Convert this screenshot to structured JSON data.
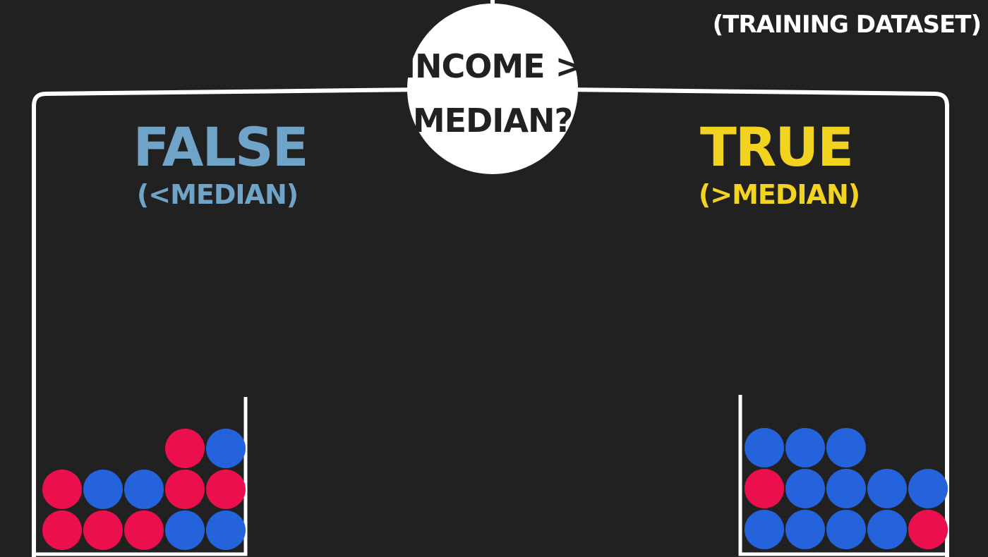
{
  "corner_label": "(TRAINING DATASET)",
  "question": {
    "line1": "INCOME >",
    "line2": "MEDIAN?"
  },
  "branches": {
    "left": {
      "title": "FALSE",
      "subtitle": "(<MEDIAN)",
      "color": "#6FA3C8",
      "rows": [
        [
          "red",
          "red",
          "red",
          "blue",
          "blue"
        ],
        [
          "red",
          "blue",
          "blue",
          "red",
          "red"
        ],
        [
          null,
          null,
          null,
          "red",
          "blue"
        ]
      ]
    },
    "right": {
      "title": "TRUE",
      "subtitle": "(>MEDIAN)",
      "color": "#F2D320",
      "rows": [
        [
          "blue",
          "blue",
          "blue",
          "blue",
          "red"
        ],
        [
          "red",
          "blue",
          "blue",
          "blue",
          "blue"
        ],
        [
          "blue",
          "blue",
          "blue",
          null,
          null
        ]
      ]
    }
  },
  "colors": {
    "background": "#222122",
    "line": "#FFFFFF",
    "red": "#EC0F4E",
    "blue": "#2463DB",
    "node_fill": "#FFFFFF",
    "node_text": "#222122",
    "corner_text": "#FFFFFF"
  }
}
